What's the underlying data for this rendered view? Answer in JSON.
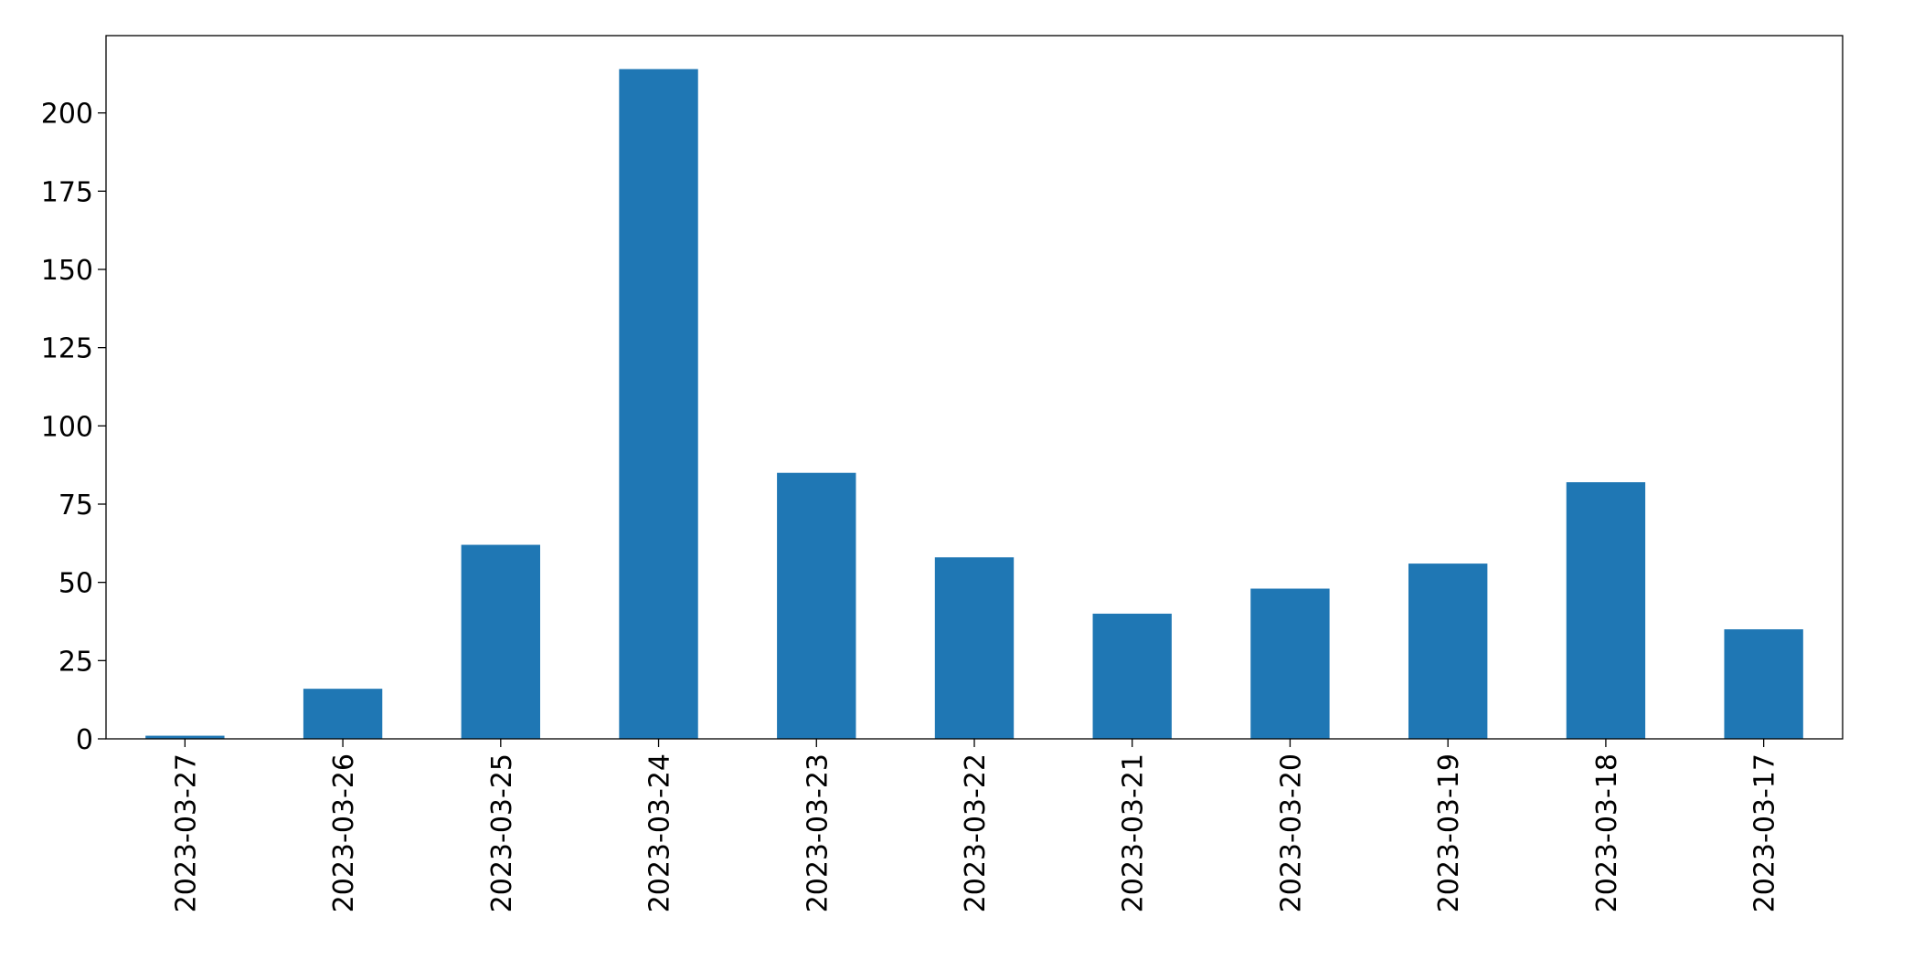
{
  "chart_data": {
    "type": "bar",
    "categories": [
      "2023-03-27",
      "2023-03-26",
      "2023-03-25",
      "2023-03-24",
      "2023-03-23",
      "2023-03-22",
      "2023-03-21",
      "2023-03-20",
      "2023-03-19",
      "2023-03-18",
      "2023-03-17"
    ],
    "values": [
      1,
      16,
      62,
      214,
      85,
      58,
      40,
      48,
      56,
      82,
      35
    ],
    "color": "#1f77b4",
    "ylim": [
      0,
      224.7
    ],
    "yticks": [
      0,
      25,
      50,
      75,
      100,
      125,
      150,
      175,
      200
    ],
    "grid": false
  }
}
